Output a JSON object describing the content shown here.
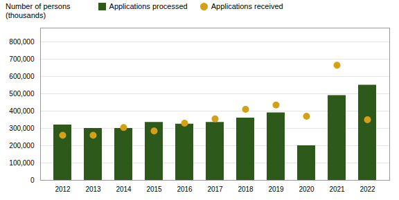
{
  "chart_data": {
    "type": "bar",
    "ylabel": [
      "Number of persons",
      "(thousands)"
    ],
    "categories": [
      "2012",
      "2013",
      "2014",
      "2015",
      "2016",
      "2017",
      "2018",
      "2019",
      "2020",
      "2021",
      "2022"
    ],
    "series": [
      {
        "name": "Applications processed",
        "type": "bar",
        "color": "#2d5a1b",
        "values": [
          320000,
          300000,
          300000,
          335000,
          325000,
          335000,
          360000,
          390000,
          200000,
          490000,
          550000
        ]
      },
      {
        "name": "Applications received",
        "type": "scatter",
        "color": "#d4a017",
        "values": [
          260000,
          260000,
          305000,
          285000,
          330000,
          355000,
          410000,
          435000,
          370000,
          665000,
          350000
        ]
      }
    ],
    "ylim": [
      0,
      880000
    ],
    "yticks": [
      0,
      {
        "value": 100000,
        "label": "100,000"
      },
      {
        "value": 200000,
        "label": "200,000"
      },
      {
        "value": 300000,
        "label": "300,000"
      },
      {
        "value": 400000,
        "label": "400,000"
      },
      {
        "value": 500000,
        "label": "500,000"
      },
      {
        "value": 600000,
        "label": "600,000"
      },
      {
        "value": 700000,
        "label": "700,000"
      },
      {
        "value": 800000,
        "label": "800,000"
      }
    ],
    "grid": true,
    "legend": "top"
  }
}
